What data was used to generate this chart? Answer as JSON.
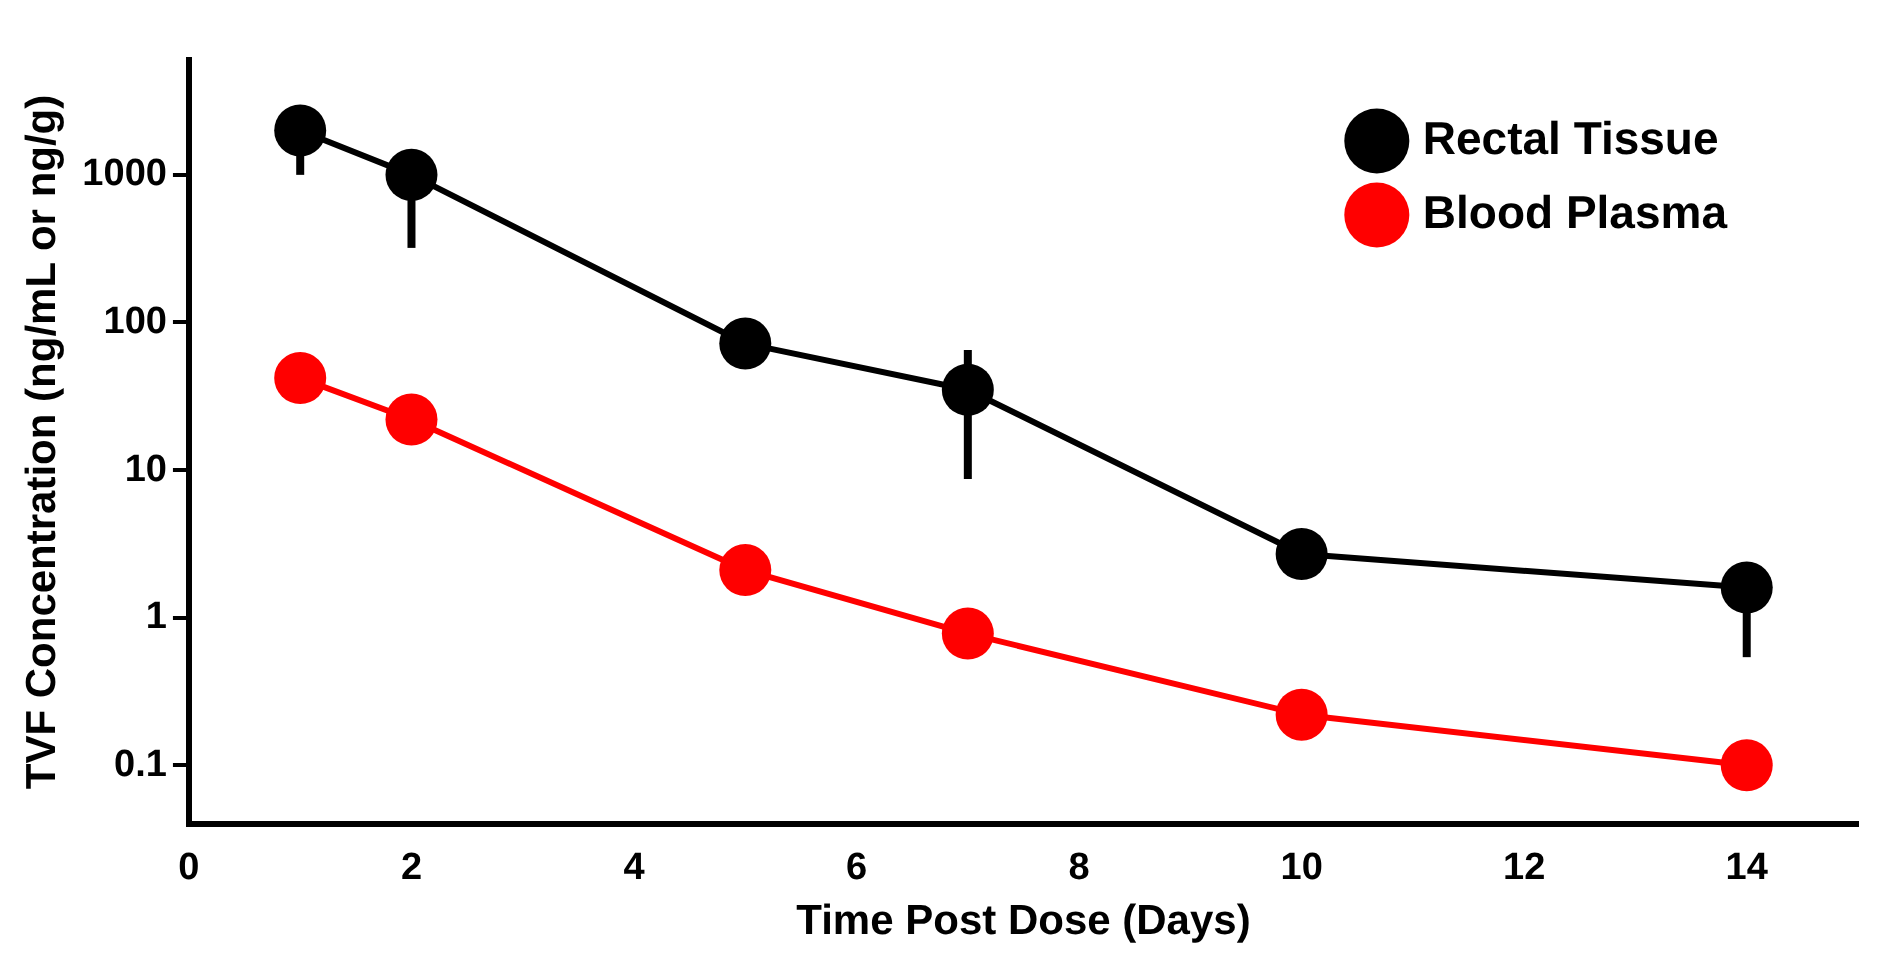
{
  "chart_data": {
    "type": "line",
    "xlabel": "Time Post Dose (Days)",
    "ylabel": "TVF Concentration (ng/mL or ng/g)",
    "x": [
      1,
      2,
      5,
      7,
      10,
      14
    ],
    "series": [
      {
        "name": "Rectal Tissue",
        "color": "#000000",
        "values": [
          2000,
          1000,
          72,
          35,
          2.7,
          1.6
        ],
        "errors": [
          [
            1000,
            2000
          ],
          [
            320,
            1000
          ],
          null,
          [
            8.7,
            65
          ],
          null,
          [
            0.54,
            1.6
          ]
        ]
      },
      {
        "name": "Blood Plasma",
        "color": "#ff0000",
        "values": [
          42,
          22,
          2.1,
          0.78,
          0.22,
          0.1
        ]
      }
    ],
    "log": "y",
    "xlim": [
      0,
      15
    ],
    "xticks": [
      0,
      2,
      4,
      6,
      8,
      10,
      12,
      14
    ],
    "ylim": [
      0.04,
      6000
    ],
    "yticks": [
      0.1,
      1,
      10,
      100,
      1000
    ],
    "grid": false,
    "legend": "top right",
    "marker": "circle",
    "line_style": "solid"
  }
}
